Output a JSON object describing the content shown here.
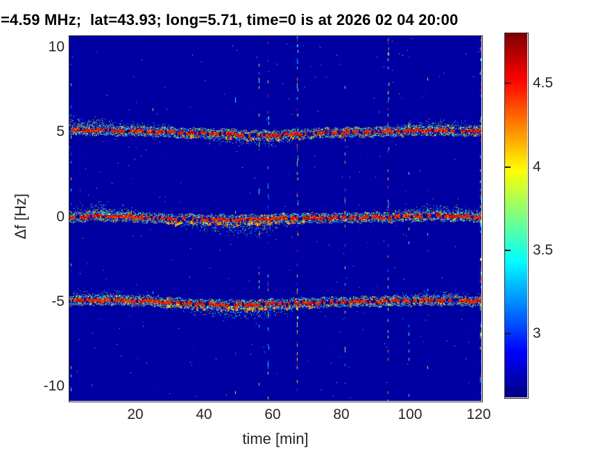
{
  "title": "=4.59 MHz;  lat=43.93; long=5.71, time=0 is at 2026 02 04 20:00",
  "chart_data": {
    "type": "heatmap",
    "subtype": "doppler-spectrogram",
    "title": "=4.59 MHz;  lat=43.93; long=5.71, time=0 is at 2026 02 04 20:00",
    "xlabel": "time [min]",
    "ylabel": "Δf [Hz]",
    "xlim": [
      0.8,
      120.8
    ],
    "ylim": [
      -10.86,
      10.66
    ],
    "xticks": [
      20,
      40,
      60,
      80,
      100,
      120
    ],
    "yticks": [
      10,
      5,
      0,
      -5,
      -10
    ],
    "grid": false,
    "colormap": "jet",
    "clim": [
      2.62,
      4.8
    ],
    "colorbar_ticks": [
      4.5,
      4,
      3.5,
      3
    ],
    "background_level": 2.66,
    "noise_amplitude": 0.07,
    "traces": [
      {
        "name": "upper-doppler-line",
        "center_hz": 5.02,
        "centerline": [
          [
            0,
            0.12
          ],
          [
            10,
            0.1
          ],
          [
            25,
            0.02
          ],
          [
            32,
            -0.05
          ],
          [
            45,
            -0.1
          ],
          [
            55,
            -0.22
          ],
          [
            62,
            -0.18
          ],
          [
            75,
            -0.05
          ],
          [
            90,
            0.0
          ],
          [
            105,
            0.1
          ],
          [
            115,
            0.05
          ],
          [
            121,
            0.02
          ]
        ],
        "cloud_up": [
          [
            0,
            0.9
          ],
          [
            8,
            1.0
          ],
          [
            15,
            0.7
          ],
          [
            25,
            0.75
          ],
          [
            32,
            0.4
          ],
          [
            40,
            0.25
          ],
          [
            55,
            0.2
          ],
          [
            70,
            0.25
          ],
          [
            85,
            0.3
          ],
          [
            95,
            0.5
          ],
          [
            105,
            0.75
          ],
          [
            112,
            0.8
          ],
          [
            121,
            0.6
          ]
        ],
        "cloud_down": [
          [
            0,
            0.25
          ],
          [
            20,
            0.25
          ],
          [
            30,
            0.3
          ],
          [
            36,
            0.55
          ],
          [
            45,
            0.7
          ],
          [
            52,
            0.75
          ],
          [
            58,
            0.8
          ],
          [
            65,
            0.55
          ],
          [
            72,
            0.35
          ],
          [
            85,
            0.25
          ],
          [
            100,
            0.3
          ],
          [
            110,
            0.35
          ],
          [
            121,
            0.3
          ]
        ]
      },
      {
        "name": "center-doppler-line",
        "center_hz": -0.02,
        "centerline": [
          [
            0,
            0.0
          ],
          [
            8,
            0.08
          ],
          [
            20,
            0.02
          ],
          [
            30,
            -0.08
          ],
          [
            40,
            -0.12
          ],
          [
            50,
            -0.15
          ],
          [
            57,
            -0.1
          ],
          [
            65,
            -0.05
          ],
          [
            80,
            -0.02
          ],
          [
            95,
            0.02
          ],
          [
            108,
            0.1
          ],
          [
            115,
            0.05
          ],
          [
            121,
            0.0
          ]
        ],
        "cloud_up": [
          [
            0,
            0.5
          ],
          [
            5,
            0.9
          ],
          [
            10,
            1.0
          ],
          [
            16,
            0.8
          ],
          [
            24,
            0.5
          ],
          [
            32,
            0.3
          ],
          [
            45,
            0.2
          ],
          [
            60,
            0.2
          ],
          [
            75,
            0.25
          ],
          [
            88,
            0.3
          ],
          [
            98,
            0.6
          ],
          [
            107,
            0.85
          ],
          [
            113,
            0.9
          ],
          [
            121,
            0.55
          ]
        ],
        "cloud_down": [
          [
            0,
            0.3
          ],
          [
            15,
            0.25
          ],
          [
            28,
            0.4
          ],
          [
            36,
            0.7
          ],
          [
            44,
            1.0
          ],
          [
            52,
            1.35
          ],
          [
            57,
            1.2
          ],
          [
            62,
            0.7
          ],
          [
            70,
            0.45
          ],
          [
            80,
            0.35
          ],
          [
            95,
            0.3
          ],
          [
            110,
            0.3
          ],
          [
            121,
            0.25
          ]
        ]
      },
      {
        "name": "lower-doppler-line",
        "center_hz": -4.98,
        "centerline": [
          [
            0,
            0.05
          ],
          [
            12,
            0.08
          ],
          [
            25,
            0.02
          ],
          [
            33,
            -0.1
          ],
          [
            42,
            -0.18
          ],
          [
            52,
            -0.2
          ],
          [
            60,
            -0.15
          ],
          [
            70,
            -0.08
          ],
          [
            82,
            -0.02
          ],
          [
            95,
            0.02
          ],
          [
            108,
            0.08
          ],
          [
            121,
            0.02
          ]
        ],
        "cloud_up": [
          [
            0,
            0.7
          ],
          [
            10,
            0.75
          ],
          [
            20,
            0.6
          ],
          [
            30,
            0.4
          ],
          [
            45,
            0.25
          ],
          [
            60,
            0.25
          ],
          [
            75,
            0.3
          ],
          [
            90,
            0.4
          ],
          [
            100,
            0.55
          ],
          [
            110,
            0.65
          ],
          [
            121,
            0.5
          ]
        ],
        "cloud_down": [
          [
            0,
            0.25
          ],
          [
            20,
            0.3
          ],
          [
            32,
            0.5
          ],
          [
            40,
            0.8
          ],
          [
            48,
            1.1
          ],
          [
            56,
            1.2
          ],
          [
            62,
            0.9
          ],
          [
            70,
            0.5
          ],
          [
            80,
            0.35
          ],
          [
            95,
            0.3
          ],
          [
            110,
            0.3
          ],
          [
            121,
            0.25
          ]
        ]
      }
    ],
    "vertical_streaks": [
      {
        "t": 1.2,
        "strength": 0.22
      },
      {
        "t": 25,
        "strength": 0.1
      },
      {
        "t": 49,
        "strength": 0.12
      },
      {
        "t": 56,
        "strength": 0.28
      },
      {
        "t": 58.5,
        "strength": 0.4
      },
      {
        "t": 67,
        "strength": 0.62
      },
      {
        "t": 81,
        "strength": 0.3
      },
      {
        "t": 93.5,
        "strength": 0.45
      },
      {
        "t": 99.5,
        "strength": 0.15
      },
      {
        "t": 105,
        "strength": 0.12
      },
      {
        "t": 120.4,
        "strength": 0.5
      }
    ]
  }
}
